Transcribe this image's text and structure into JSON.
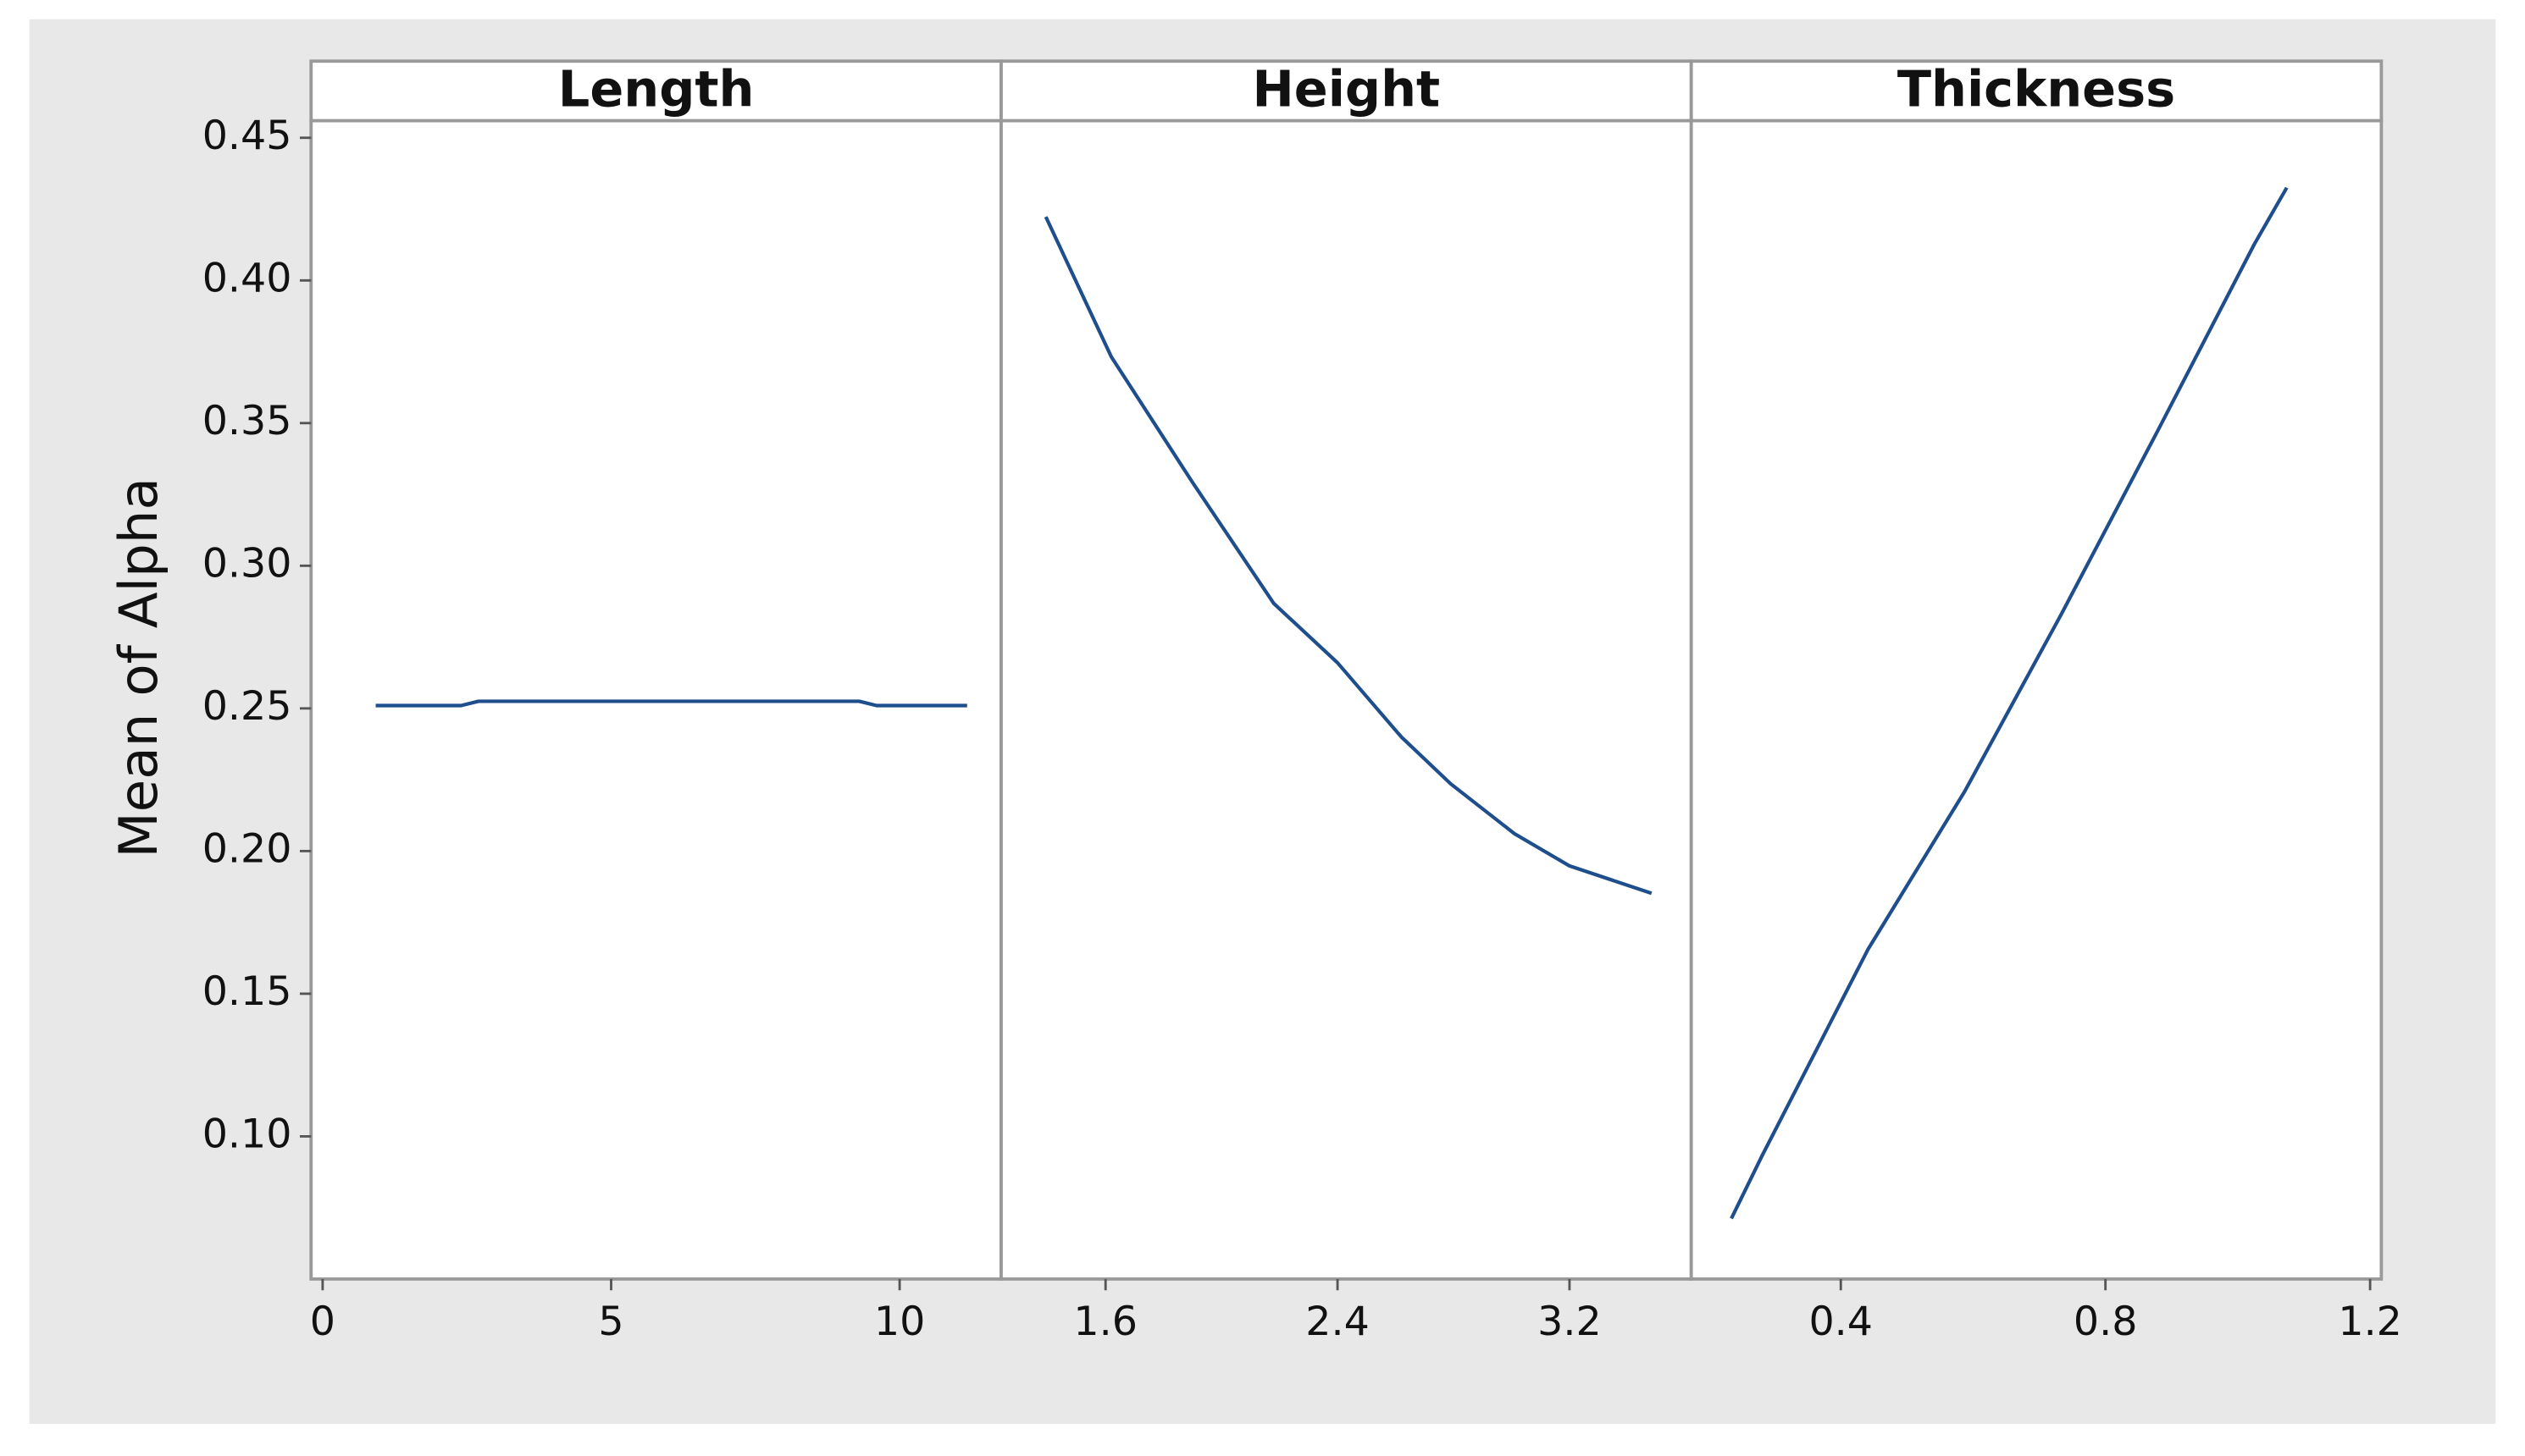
{
  "chart_data": [
    {
      "type": "line",
      "title": "Length",
      "y_label": "Mean of Alpha",
      "color": "#1f4e8c",
      "x": [
        0.92,
        2.4,
        2.7,
        9.3,
        9.6,
        11.17
      ],
      "values": [
        0.251,
        0.251,
        0.2525,
        0.2525,
        0.251,
        0.251
      ],
      "xlim": [
        -0.2,
        11.76
      ],
      "xticks": [
        0,
        5,
        10
      ],
      "ylim": [
        0.05,
        0.456
      ],
      "yticks": [
        {
          "value": 0.1,
          "label": "0.10"
        },
        0.15,
        {
          "value": 0.2,
          "label": "0.20"
        },
        0.25,
        {
          "value": 0.3,
          "label": "0.30"
        },
        0.35,
        {
          "value": 0.4,
          "label": "0.40"
        },
        0.45
      ]
    },
    {
      "type": "line",
      "title": "Height",
      "color": "#1f4e8c",
      "x": [
        1.394,
        1.62,
        1.9,
        2.18,
        2.4,
        2.62,
        2.79,
        3.01,
        3.2,
        3.483
      ],
      "values": [
        0.4223,
        0.3732,
        0.3292,
        0.2868,
        0.266,
        0.24,
        0.2236,
        0.2061,
        0.1948,
        0.1852
      ],
      "xlim": [
        1.24,
        3.62
      ],
      "xticks": [
        1.6,
        2.4,
        3.2
      ],
      "ylim": [
        0.05,
        0.456
      ]
    },
    {
      "type": "line",
      "title": "Thickness",
      "color": "#1f4e8c",
      "x": [
        0.2346,
        0.281,
        0.441,
        0.587,
        0.733,
        0.879,
        1.025,
        1.074
      ],
      "values": [
        0.0712,
        0.0932,
        0.1655,
        0.2208,
        0.2829,
        0.3473,
        0.4127,
        0.4325
      ],
      "xlim": [
        0.174,
        1.217
      ],
      "xticks": [
        0.4,
        0.8,
        1.2
      ],
      "ylim": [
        0.05,
        0.456
      ]
    }
  ]
}
